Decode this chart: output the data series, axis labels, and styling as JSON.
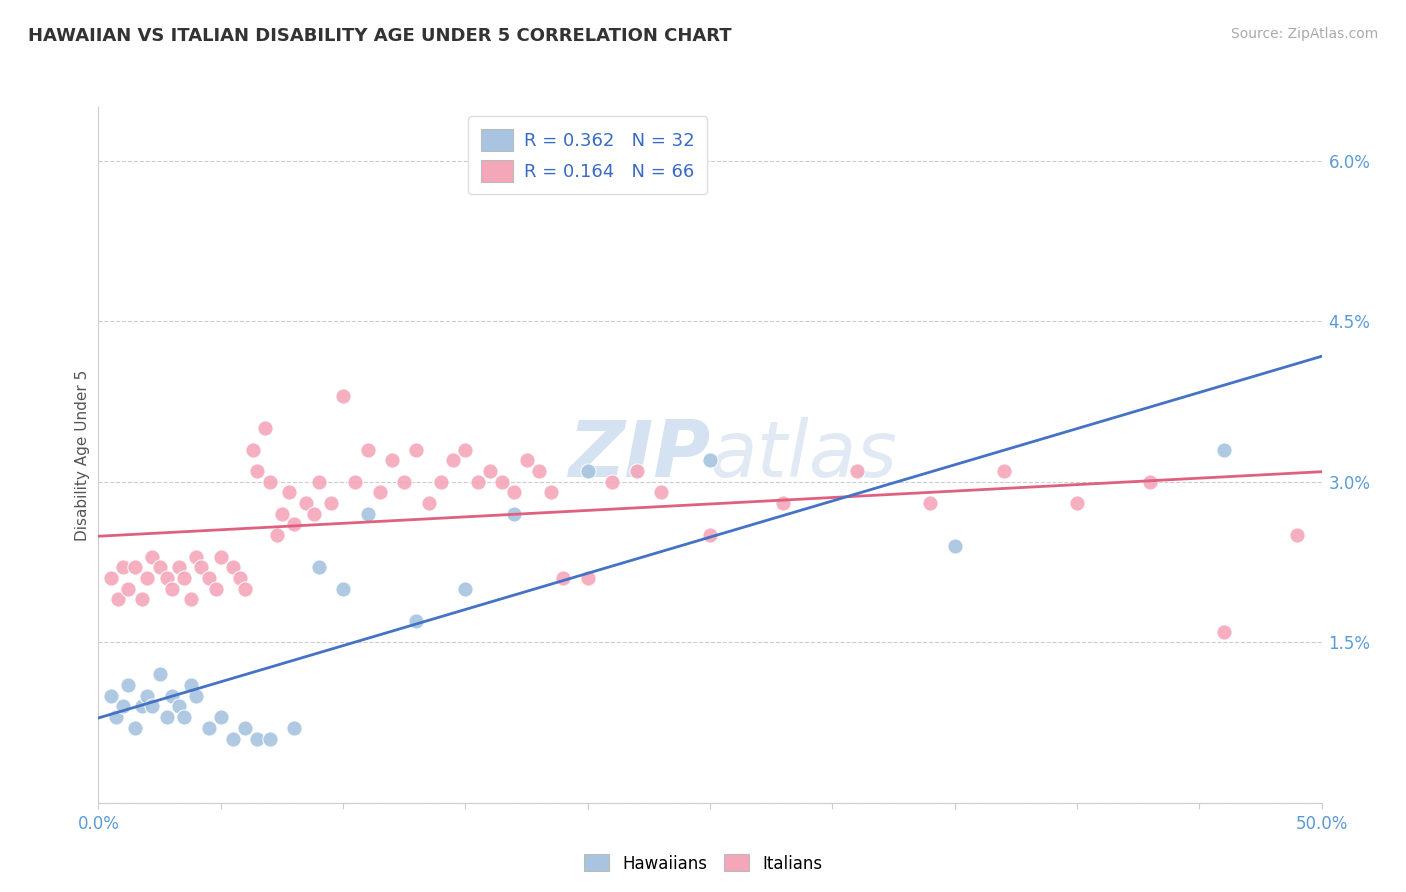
{
  "title": "HAWAIIAN VS ITALIAN DISABILITY AGE UNDER 5 CORRELATION CHART",
  "source_text": "Source: ZipAtlas.com",
  "ylabel": "Disability Age Under 5",
  "xlim": [
    0.0,
    0.5
  ],
  "ylim": [
    0.0,
    0.065
  ],
  "xtick_positions": [
    0.0,
    0.05,
    0.1,
    0.15,
    0.2,
    0.25,
    0.3,
    0.35,
    0.4,
    0.45,
    0.5
  ],
  "xtick_labels": [
    "0.0%",
    "",
    "",
    "",
    "",
    "",
    "",
    "",
    "",
    "",
    "50.0%"
  ],
  "ytick_positions": [
    0.0,
    0.015,
    0.03,
    0.045,
    0.06
  ],
  "ytick_labels": [
    "",
    "1.5%",
    "3.0%",
    "4.5%",
    "6.0%"
  ],
  "hawaiian_R": 0.362,
  "hawaiian_N": 32,
  "italian_R": 0.164,
  "italian_N": 66,
  "hawaiian_color": "#a8c4e0",
  "italian_color": "#f4a7b9",
  "hawaiian_line_color": "#4472c4",
  "italian_line_color": "#e06080",
  "background_color": "#ffffff",
  "grid_color": "#cccccc",
  "watermark_color": "#dce6f5",
  "hawaiian_x": [
    0.005,
    0.007,
    0.01,
    0.012,
    0.015,
    0.018,
    0.02,
    0.022,
    0.025,
    0.028,
    0.03,
    0.033,
    0.035,
    0.038,
    0.04,
    0.045,
    0.05,
    0.055,
    0.06,
    0.065,
    0.07,
    0.08,
    0.09,
    0.1,
    0.11,
    0.13,
    0.15,
    0.17,
    0.2,
    0.25,
    0.35,
    0.46
  ],
  "hawaiian_y": [
    0.01,
    0.008,
    0.009,
    0.011,
    0.007,
    0.009,
    0.01,
    0.009,
    0.012,
    0.008,
    0.01,
    0.009,
    0.008,
    0.011,
    0.01,
    0.007,
    0.008,
    0.006,
    0.007,
    0.006,
    0.006,
    0.007,
    0.022,
    0.02,
    0.027,
    0.017,
    0.02,
    0.027,
    0.031,
    0.032,
    0.024,
    0.033
  ],
  "italian_x": [
    0.005,
    0.008,
    0.01,
    0.012,
    0.015,
    0.018,
    0.02,
    0.022,
    0.025,
    0.028,
    0.03,
    0.033,
    0.035,
    0.038,
    0.04,
    0.042,
    0.045,
    0.048,
    0.05,
    0.055,
    0.058,
    0.06,
    0.063,
    0.065,
    0.068,
    0.07,
    0.073,
    0.075,
    0.078,
    0.08,
    0.085,
    0.088,
    0.09,
    0.095,
    0.1,
    0.105,
    0.11,
    0.115,
    0.12,
    0.125,
    0.13,
    0.135,
    0.14,
    0.145,
    0.15,
    0.155,
    0.16,
    0.165,
    0.17,
    0.175,
    0.18,
    0.185,
    0.19,
    0.2,
    0.21,
    0.22,
    0.23,
    0.25,
    0.28,
    0.31,
    0.34,
    0.37,
    0.4,
    0.43,
    0.46,
    0.49
  ],
  "italian_y": [
    0.021,
    0.019,
    0.022,
    0.02,
    0.022,
    0.019,
    0.021,
    0.023,
    0.022,
    0.021,
    0.02,
    0.022,
    0.021,
    0.019,
    0.023,
    0.022,
    0.021,
    0.02,
    0.023,
    0.022,
    0.021,
    0.02,
    0.033,
    0.031,
    0.035,
    0.03,
    0.025,
    0.027,
    0.029,
    0.026,
    0.028,
    0.027,
    0.03,
    0.028,
    0.038,
    0.03,
    0.033,
    0.029,
    0.032,
    0.03,
    0.033,
    0.028,
    0.03,
    0.032,
    0.033,
    0.03,
    0.031,
    0.03,
    0.029,
    0.032,
    0.031,
    0.029,
    0.021,
    0.021,
    0.03,
    0.031,
    0.029,
    0.025,
    0.028,
    0.031,
    0.028,
    0.031,
    0.028,
    0.03,
    0.016,
    0.025
  ]
}
